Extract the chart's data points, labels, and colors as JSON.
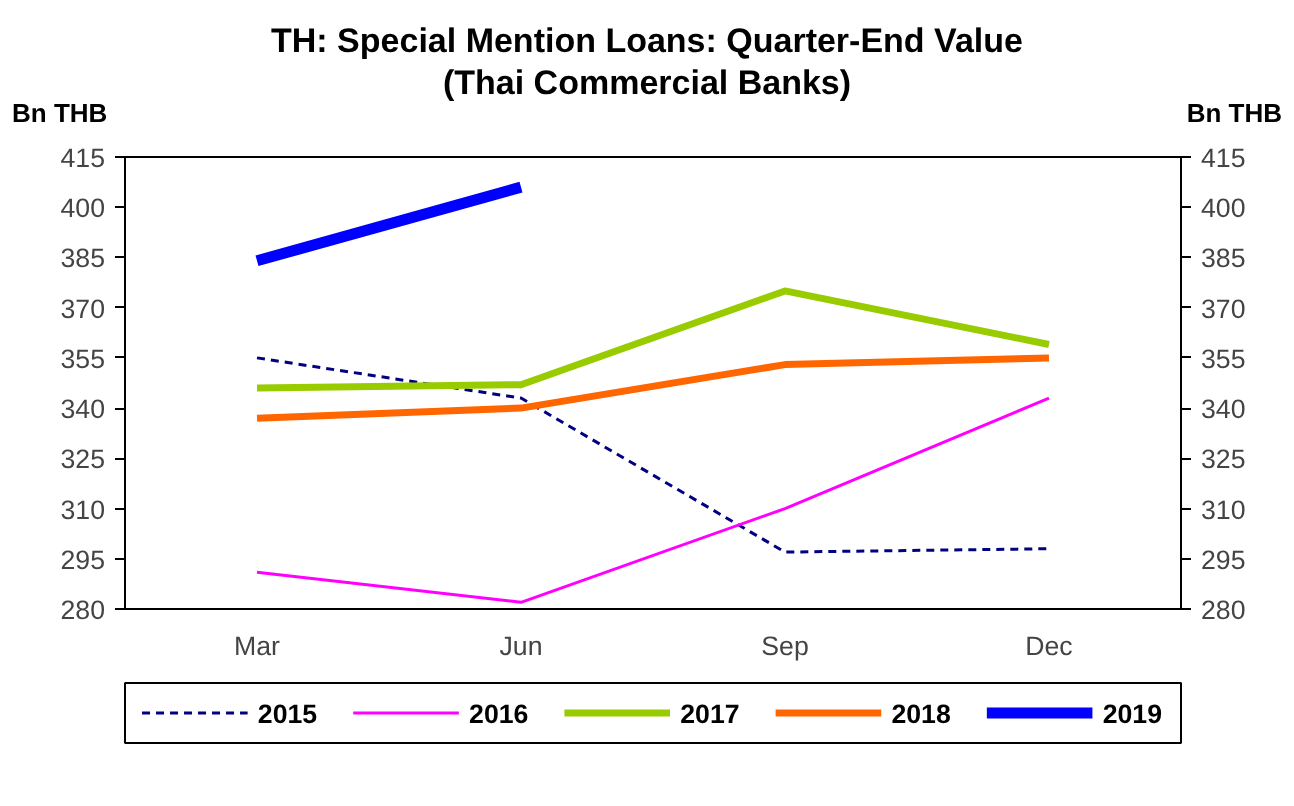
{
  "chart_data": {
    "type": "line",
    "title": "TH: Special Mention Loans: Quarter-End Value\n(Thai Commercial Banks)",
    "ylabel": "Bn THB",
    "y2label": "Bn THB",
    "categories": [
      "Mar",
      "Jun",
      "Sep",
      "Dec"
    ],
    "series": [
      {
        "name": "2015",
        "color": "#000080",
        "line_style": "dashed",
        "values": [
          355,
          343,
          297,
          298
        ]
      },
      {
        "name": "2016",
        "color": "#ff00ff",
        "values": [
          291,
          282,
          310,
          343
        ]
      },
      {
        "name": "2017",
        "color": "#99cc00",
        "values": [
          346,
          347,
          375,
          359
        ]
      },
      {
        "name": "2018",
        "color": "#ff6600",
        "values": [
          337,
          340,
          353,
          355
        ]
      },
      {
        "name": "2019",
        "color": "#0000ff",
        "values": [
          384,
          406,
          null,
          null
        ]
      }
    ],
    "ylim": [
      280,
      415
    ],
    "yticks": [
      280,
      295,
      310,
      325,
      340,
      355,
      370,
      385,
      400,
      415
    ],
    "y2lim": [
      280,
      415
    ],
    "y2ticks": [
      280,
      295,
      310,
      325,
      340,
      355,
      370,
      385,
      400,
      415
    ],
    "legend": "bottom"
  }
}
